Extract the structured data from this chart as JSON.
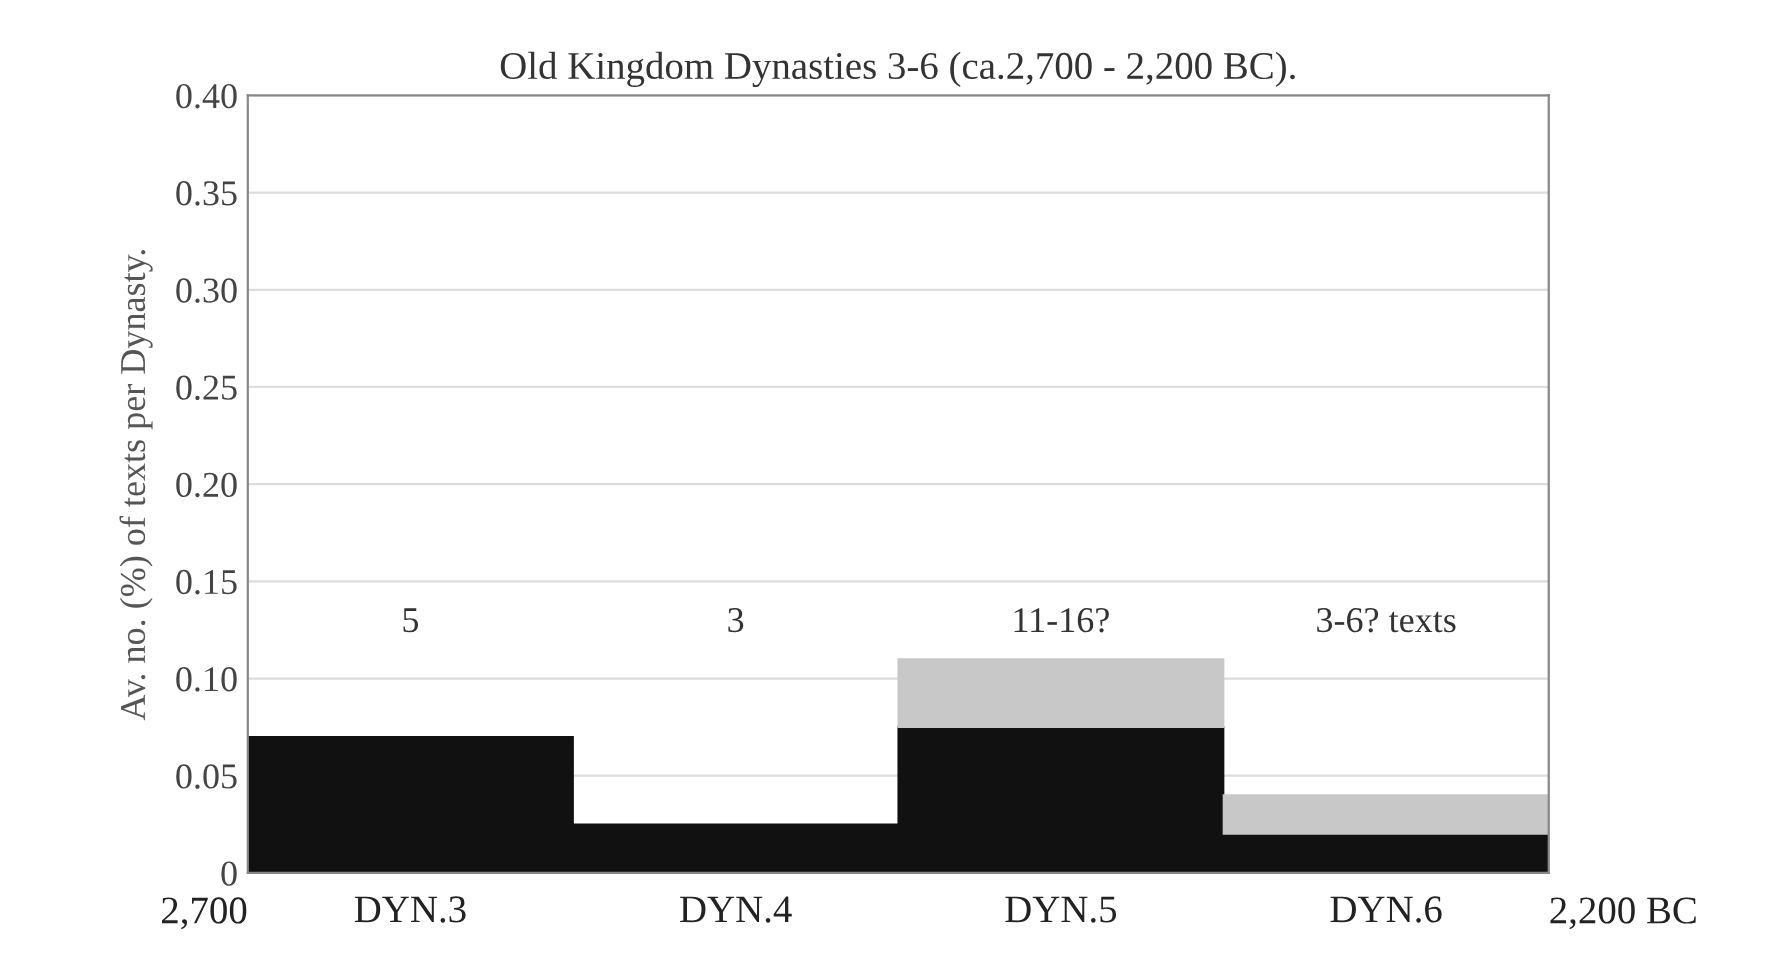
{
  "chart_data": {
    "type": "bar",
    "title": "Old Kingdom Dynasties 3-6 (ca.2,700 - 2,200 BC).",
    "ylabel": "Av. no. (%) of texts per Dynasty.",
    "categories": [
      "DYN.3",
      "DYN.4",
      "DYN.5",
      "DYN.6"
    ],
    "stacked": true,
    "series": [
      {
        "color": "#111111",
        "values": [
          0.07,
          0.025,
          0.075,
          0.02
        ]
      },
      {
        "color": "#c8c8c8",
        "values": [
          null,
          null,
          0.035,
          0.02
        ]
      }
    ],
    "ylim": [
      0,
      0.4
    ],
    "yticks": [
      {
        "value": 0,
        "label": "0"
      },
      {
        "value": 0.05,
        "label": "0.05"
      },
      {
        "value": 0.1,
        "label": "0.10"
      },
      {
        "value": 0.15,
        "label": "0.15"
      },
      {
        "value": 0.2,
        "label": "0.20"
      },
      {
        "value": 0.25,
        "label": "0.25"
      },
      {
        "value": 0.3,
        "label": "0.30"
      },
      {
        "value": 0.35,
        "label": "0.35"
      },
      {
        "value": 0.4,
        "label": "0.40"
      }
    ],
    "grid": "y",
    "annotations": [
      "5",
      "3",
      "11-16?",
      "3-6? texts",
      "2,700",
      "2,200 BC"
    ]
  }
}
